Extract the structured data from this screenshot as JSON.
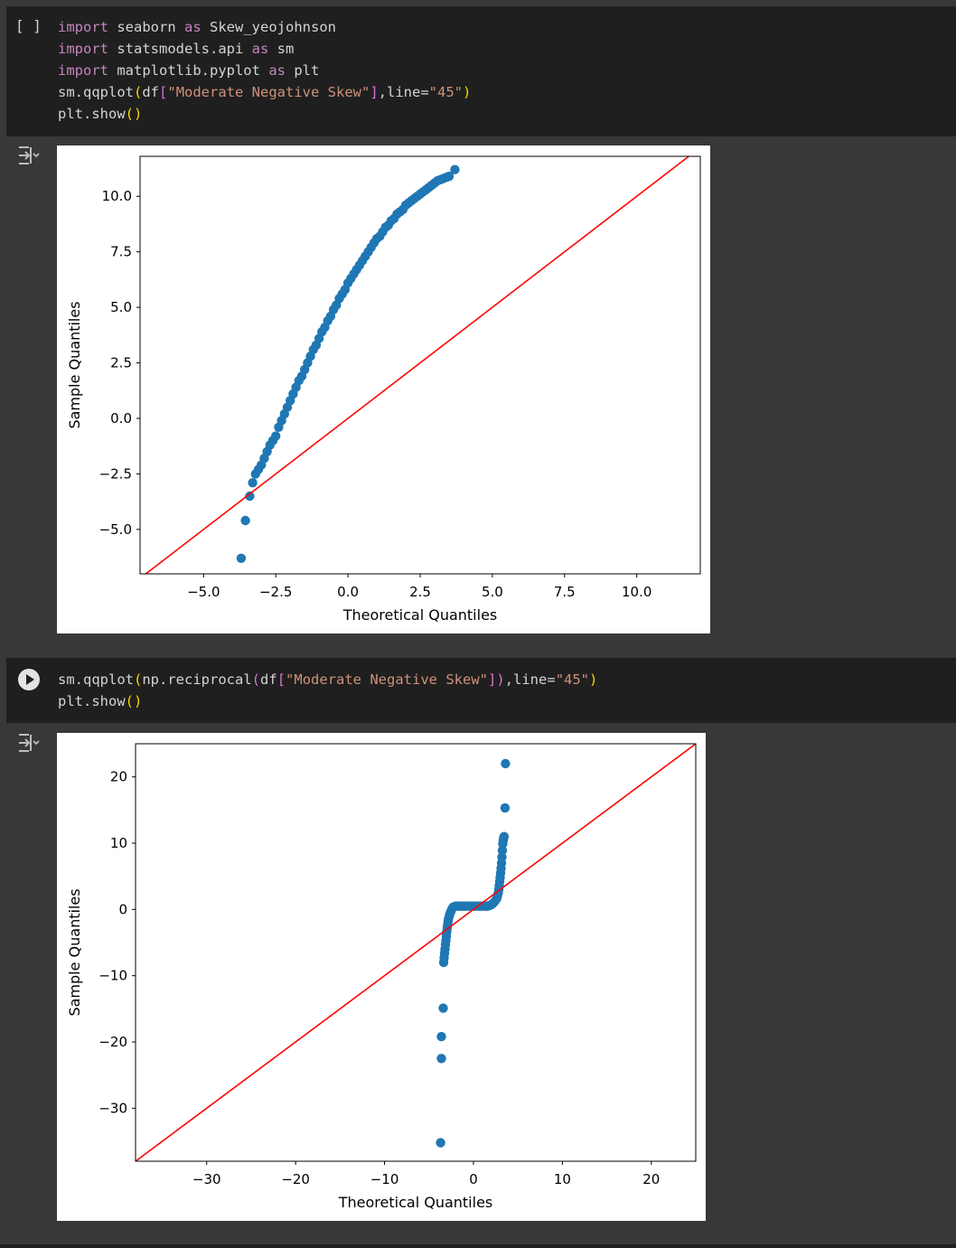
{
  "cell1": {
    "gutter": "[ ]",
    "code_lines": [
      [
        {
          "t": "import",
          "c": "kw"
        },
        {
          "t": " seaborn "
        },
        {
          "t": "as",
          "c": "kw"
        },
        {
          "t": " Skew_yeojohnson"
        }
      ],
      [
        {
          "t": "import",
          "c": "kw"
        },
        {
          "t": " statsmodels.api "
        },
        {
          "t": "as",
          "c": "kw"
        },
        {
          "t": " sm"
        }
      ],
      [
        {
          "t": "import",
          "c": "kw"
        },
        {
          "t": " matplotlib.pyplot "
        },
        {
          "t": "as",
          "c": "kw"
        },
        {
          "t": " plt"
        }
      ],
      [
        {
          "t": "sm.qqplot"
        },
        {
          "t": "(",
          "c": "br"
        },
        {
          "t": "df"
        },
        {
          "t": "[",
          "c": "br2"
        },
        {
          "t": "\"Moderate Negative Skew\"",
          "c": "str"
        },
        {
          "t": "]",
          "c": "br2"
        },
        {
          "t": ",line="
        },
        {
          "t": "\"45\"",
          "c": "str"
        },
        {
          "t": ")",
          "c": "br"
        }
      ],
      [
        {
          "t": "plt.show"
        },
        {
          "t": "()",
          "c": "br"
        }
      ]
    ]
  },
  "cell2": {
    "code_lines": [
      [
        {
          "t": "sm.qqplot"
        },
        {
          "t": "(",
          "c": "br"
        },
        {
          "t": "np.reciprocal"
        },
        {
          "t": "(",
          "c": "br2"
        },
        {
          "t": "df"
        },
        {
          "t": "[",
          "c": "br2"
        },
        {
          "t": "\"Moderate Negative Skew\"",
          "c": "str"
        },
        {
          "t": "]",
          "c": "br2"
        },
        {
          "t": ")",
          "c": "br2"
        },
        {
          "t": ",line="
        },
        {
          "t": "\"45\"",
          "c": "str"
        },
        {
          "t": ")",
          "c": "br"
        }
      ],
      [
        {
          "t": "plt.show"
        },
        {
          "t": "()",
          "c": "br"
        }
      ]
    ]
  },
  "colors": {
    "points": "#1f77b4",
    "reference_line": "#ff0000",
    "cell_bg": "#1f1f1f",
    "page_bg": "#383838"
  },
  "icons": {
    "output_toggle": "collapse-output-icon",
    "run": "play-icon"
  },
  "chart_data": [
    {
      "type": "scatter",
      "title": "",
      "xlabel": "Theoretical Quantiles",
      "ylabel": "Sample Quantiles",
      "xlim": [
        -7.2,
        12.2
      ],
      "ylim": [
        -7.0,
        11.8
      ],
      "xticks": [
        -5.0,
        -2.5,
        0.0,
        2.5,
        5.0,
        7.5,
        10.0
      ],
      "xtick_labels": [
        "−5.0",
        "−2.5",
        "0.0",
        "2.5",
        "5.0",
        "7.5",
        "10.0"
      ],
      "yticks": [
        -5.0,
        -2.5,
        0.0,
        2.5,
        5.0,
        7.5,
        10.0
      ],
      "ytick_labels": [
        "−5.0",
        "−2.5",
        "0.0",
        "2.5",
        "5.0",
        "7.5",
        "10.0"
      ],
      "reference_line": "45",
      "series": [
        {
          "x": [
            -3.7,
            -3.55,
            -3.4,
            -3.3,
            -3.2,
            -3.1,
            -3.0,
            -2.9,
            -2.8,
            -2.7,
            -2.6,
            -2.5,
            -2.4,
            -2.3,
            -2.2,
            -2.1,
            -2.0,
            -1.9,
            -1.8,
            -1.7,
            -1.6,
            -1.5,
            -1.4,
            -1.3,
            -1.2,
            -1.1,
            -1.0,
            -0.9,
            -0.8,
            -0.7,
            -0.6,
            -0.5,
            -0.4,
            -0.3,
            -0.2,
            -0.1,
            0.0,
            0.1,
            0.2,
            0.3,
            0.4,
            0.5,
            0.6,
            0.7,
            0.8,
            0.9,
            1.0,
            1.1,
            1.2,
            1.3,
            1.4,
            1.5,
            1.6,
            1.7,
            1.8,
            1.9,
            2.0,
            2.1,
            2.2,
            2.3,
            2.4,
            2.5,
            2.6,
            2.7,
            2.8,
            2.9,
            3.0,
            3.1,
            3.2,
            3.3,
            3.4,
            3.5,
            3.7
          ],
          "y": [
            -6.3,
            -4.6,
            -3.5,
            -2.9,
            -2.5,
            -2.3,
            -2.1,
            -1.8,
            -1.5,
            -1.2,
            -1.0,
            -0.8,
            -0.4,
            -0.1,
            0.2,
            0.5,
            0.8,
            1.1,
            1.4,
            1.7,
            1.9,
            2.2,
            2.5,
            2.8,
            3.1,
            3.3,
            3.6,
            3.9,
            4.1,
            4.4,
            4.6,
            4.9,
            5.1,
            5.4,
            5.6,
            5.8,
            6.1,
            6.3,
            6.5,
            6.7,
            6.9,
            7.1,
            7.3,
            7.5,
            7.7,
            7.9,
            8.1,
            8.2,
            8.4,
            8.6,
            8.7,
            8.9,
            9.0,
            9.2,
            9.3,
            9.4,
            9.6,
            9.7,
            9.8,
            9.9,
            10.0,
            10.1,
            10.2,
            10.3,
            10.4,
            10.5,
            10.6,
            10.7,
            10.75,
            10.8,
            10.85,
            10.9,
            11.2
          ]
        }
      ]
    },
    {
      "type": "scatter",
      "title": "",
      "xlabel": "Theoretical Quantiles",
      "ylabel": "Sample Quantiles",
      "xlim": [
        -38.0,
        25.0
      ],
      "ylim": [
        -38.0,
        25.0
      ],
      "xticks": [
        -30,
        -20,
        -10,
        0,
        10,
        20
      ],
      "xtick_labels": [
        "−30",
        "−20",
        "−10",
        "0",
        "10",
        "20"
      ],
      "yticks": [
        -30,
        -20,
        -10,
        0,
        10,
        20
      ],
      "ytick_labels": [
        "−30",
        "−20",
        "−10",
        "0",
        "10",
        "20"
      ],
      "reference_line": "45",
      "series": [
        {
          "x": [
            -3.7,
            -3.6,
            -3.6,
            -3.4,
            -3.35,
            -3.3,
            -3.25,
            -3.2,
            -3.15,
            -3.1,
            -3.05,
            -3.0,
            -2.95,
            -2.9,
            -2.85,
            -2.8,
            -2.7,
            -2.6,
            -2.5,
            -2.4,
            -2.3,
            -2.2,
            -2.0,
            -1.8,
            -1.6,
            -1.4,
            -1.2,
            -1.0,
            -0.8,
            -0.6,
            -0.4,
            -0.2,
            0.0,
            0.2,
            0.4,
            0.6,
            0.8,
            1.0,
            1.2,
            1.4,
            1.6,
            1.8,
            2.0,
            2.2,
            2.4,
            2.6,
            2.7,
            2.8,
            2.85,
            2.9,
            2.95,
            3.0,
            3.05,
            3.1,
            3.15,
            3.2,
            3.25,
            3.3,
            3.35,
            3.4,
            3.45,
            3.55,
            3.6
          ],
          "y": [
            -35.2,
            -22.5,
            -19.2,
            -14.9,
            -8.0,
            -7.3,
            -6.6,
            -6.0,
            -5.3,
            -4.7,
            -4.0,
            -3.4,
            -2.8,
            -2.3,
            -1.8,
            -1.4,
            -0.9,
            -0.5,
            -0.2,
            0.1,
            0.3,
            0.4,
            0.5,
            0.5,
            0.5,
            0.5,
            0.5,
            0.5,
            0.5,
            0.5,
            0.5,
            0.5,
            0.5,
            0.5,
            0.5,
            0.5,
            0.5,
            0.5,
            0.5,
            0.5,
            0.5,
            0.6,
            0.7,
            0.9,
            1.2,
            1.6,
            2.0,
            2.5,
            3.0,
            3.6,
            4.2,
            4.8,
            5.5,
            6.2,
            7.0,
            7.9,
            8.9,
            9.9,
            10.4,
            10.8,
            11.0,
            15.3,
            22.0
          ]
        }
      ]
    }
  ]
}
